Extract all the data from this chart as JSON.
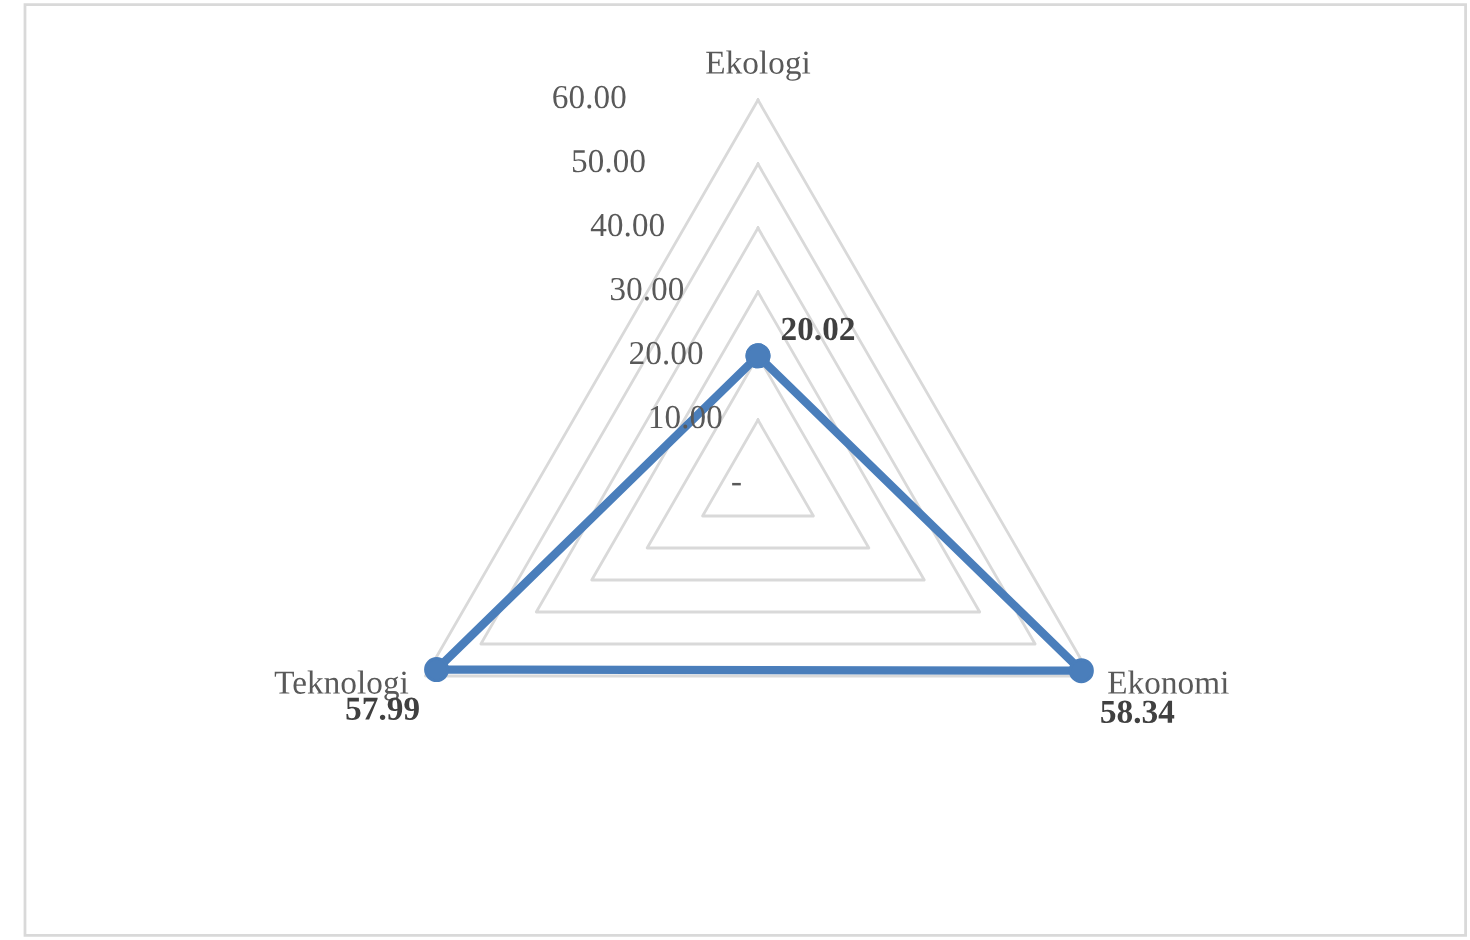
{
  "chart_data": {
    "type": "radar",
    "categories": [
      "Ekologi",
      "Ekonomi",
      "Teknologi"
    ],
    "series": [
      {
        "color": "#4a7ebb",
        "values": [
          20.02,
          58.34,
          57.99
        ]
      }
    ],
    "ylim": [
      0,
      60
    ],
    "yticks": [
      {
        "value": 0,
        "label": "-"
      },
      {
        "value": 10,
        "label": "10.00"
      },
      {
        "value": 20,
        "label": "20.00"
      },
      {
        "value": 30,
        "label": "30.00"
      },
      {
        "value": 40,
        "label": "40.00"
      },
      {
        "value": 50,
        "label": "50.00"
      },
      {
        "value": 60,
        "label": "60.00"
      }
    ],
    "marker": "circle",
    "data_labels": true
  }
}
